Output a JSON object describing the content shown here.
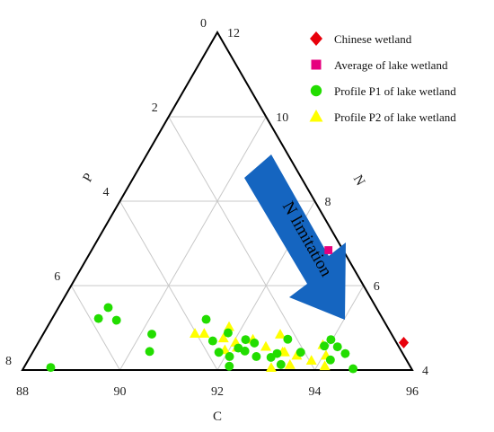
{
  "chart_data": {
    "type": "ternary",
    "axes": {
      "C": {
        "label": "C",
        "range": [
          88,
          96
        ],
        "ticks": [
          88,
          90,
          92,
          94,
          96
        ]
      },
      "N": {
        "label": "N",
        "range": [
          4,
          12
        ],
        "ticks": [
          4,
          6,
          8,
          10,
          12
        ]
      },
      "P": {
        "label": "P",
        "range": [
          0,
          8
        ],
        "ticks": [
          0,
          2,
          4,
          6,
          8
        ]
      }
    },
    "grid": true,
    "legend": {
      "position": "top-right"
    },
    "annotation": {
      "text": "N limitation",
      "color": "#1565C0"
    },
    "series": [
      {
        "name": "Chinese wetland",
        "marker": "diamond",
        "color": "#E8000B",
        "points": [
          {
            "C": 95.5,
            "N": 4.65,
            "P": -0.15
          }
        ]
      },
      {
        "name": "Average of lake wetland",
        "marker": "square",
        "color": "#E6007E",
        "points": [
          {
            "C": 92.86,
            "N": 6.84,
            "P": 0.3
          }
        ]
      },
      {
        "name": "Profile P1 of lake wetland",
        "marker": "circle",
        "color": "#22DD00",
        "points": [
          {
            "C": 88.55,
            "N": 4.06,
            "P": 7.39
          },
          {
            "C": 89.02,
            "N": 5.48,
            "P": 5.5
          },
          {
            "C": 88.95,
            "N": 5.22,
            "P": 5.83
          },
          {
            "C": 89.34,
            "N": 5.18,
            "P": 5.48
          },
          {
            "C": 90.23,
            "N": 4.85,
            "P": 4.92
          },
          {
            "C": 90.39,
            "N": 4.44,
            "P": 5.17
          },
          {
            "C": 91.17,
            "N": 5.2,
            "P": 3.63
          },
          {
            "C": 91.56,
            "N": 4.69,
            "P": 3.75
          },
          {
            "C": 91.78,
            "N": 4.88,
            "P": 3.34
          },
          {
            "C": 92.22,
            "N": 4.72,
            "P": 3.06
          },
          {
            "C": 92.17,
            "N": 4.52,
            "P": 3.31
          },
          {
            "C": 92.44,
            "N": 4.64,
            "P": 2.92
          },
          {
            "C": 92.34,
            "N": 4.45,
            "P": 3.21
          },
          {
            "C": 92.09,
            "N": 4.32,
            "P": 3.59
          },
          {
            "C": 91.82,
            "N": 4.42,
            "P": 3.76
          },
          {
            "C": 92.2,
            "N": 4.09,
            "P": 3.71
          },
          {
            "C": 92.64,
            "N": 4.32,
            "P": 3.04
          },
          {
            "C": 92.95,
            "N": 4.3,
            "P": 2.75
          },
          {
            "C": 93.03,
            "N": 4.39,
            "P": 2.58
          },
          {
            "C": 93.24,
            "N": 4.13,
            "P": 2.63
          },
          {
            "C": 93.08,
            "N": 4.73,
            "P": 2.19
          },
          {
            "C": 93.5,
            "N": 4.42,
            "P": 2.08
          },
          {
            "C": 93.91,
            "N": 4.57,
            "P": 1.52
          },
          {
            "C": 93.97,
            "N": 4.72,
            "P": 1.31
          },
          {
            "C": 94.19,
            "N": 4.55,
            "P": 1.26
          },
          {
            "C": 94.2,
            "N": 4.24,
            "P": 1.56
          },
          {
            "C": 94.43,
            "N": 4.39,
            "P": 1.18
          },
          {
            "C": 94.77,
            "N": 4.03,
            "P": 1.2
          }
        ]
      },
      {
        "name": "Profile P2 of lake wetland",
        "marker": "triangle",
        "color": "#FFFF00",
        "points": [
          {
            "C": 91.11,
            "N": 4.86,
            "P": 4.03
          },
          {
            "C": 91.3,
            "N": 4.86,
            "P": 3.84
          },
          {
            "C": 91.73,
            "N": 5.02,
            "P": 3.25
          },
          {
            "C": 91.75,
            "N": 4.75,
            "P": 3.5
          },
          {
            "C": 91.92,
            "N": 4.47,
            "P": 3.61
          },
          {
            "C": 92.05,
            "N": 4.65,
            "P": 3.3
          },
          {
            "C": 92.14,
            "N": 4.53,
            "P": 3.33
          },
          {
            "C": 92.37,
            "N": 4.72,
            "P": 2.91
          },
          {
            "C": 92.72,
            "N": 4.55,
            "P": 2.73
          },
          {
            "C": 92.87,
            "N": 4.84,
            "P": 2.29
          },
          {
            "C": 93.17,
            "N": 4.42,
            "P": 2.41
          },
          {
            "C": 93.08,
            "N": 4.05,
            "P": 2.87
          },
          {
            "C": 93.43,
            "N": 4.12,
            "P": 2.45
          },
          {
            "C": 93.46,
            "N": 4.34,
            "P": 2.2
          },
          {
            "C": 93.82,
            "N": 4.22,
            "P": 1.96
          },
          {
            "C": 94.06,
            "N": 4.34,
            "P": 1.6
          },
          {
            "C": 94.16,
            "N": 4.09,
            "P": 1.75
          },
          {
            "C": 93.87,
            "N": 4.59,
            "P": 1.54
          },
          {
            "C": 93.13,
            "N": 4.42,
            "P": 2.45
          }
        ]
      }
    ]
  }
}
